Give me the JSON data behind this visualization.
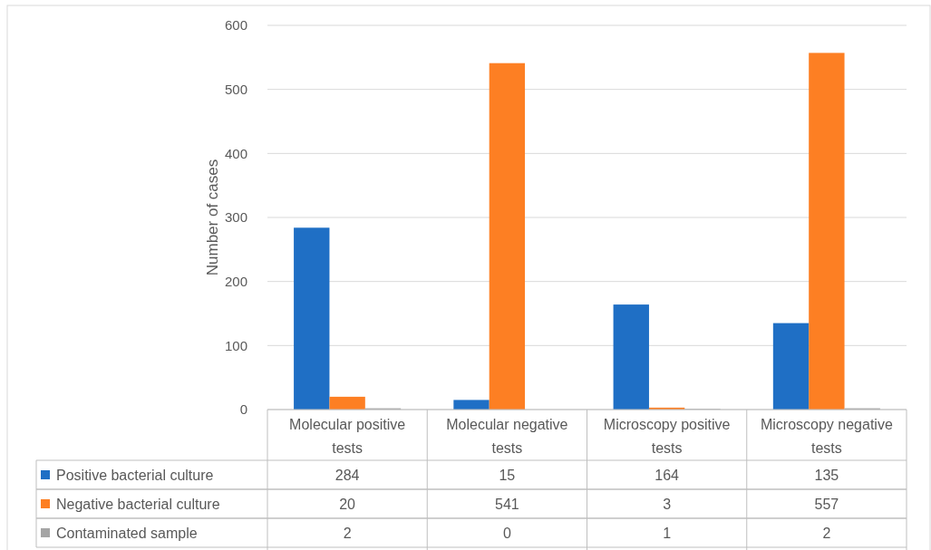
{
  "chart_data": {
    "type": "bar",
    "ylabel": "Number of cases",
    "categories": [
      "Molecular positive tests",
      "Molecular negative tests",
      "Microscopy positive tests",
      "Microscopy negative tests"
    ],
    "series": [
      {
        "name": "Positive bacterial culture",
        "color": "#1f6fc5",
        "values": [
          284,
          15,
          164,
          135
        ]
      },
      {
        "name": "Negative bacterial culture",
        "color": "#fd7f23",
        "values": [
          20,
          541,
          3,
          557
        ]
      },
      {
        "name": "Contaminated sample",
        "color": "#a5a5a5",
        "values": [
          2,
          0,
          1,
          2
        ]
      }
    ],
    "ylim": [
      0,
      600
    ],
    "yticks": [
      0,
      100,
      200,
      300,
      400,
      500,
      600
    ],
    "grid": "y",
    "legend": "bottom",
    "data_labels": true
  }
}
